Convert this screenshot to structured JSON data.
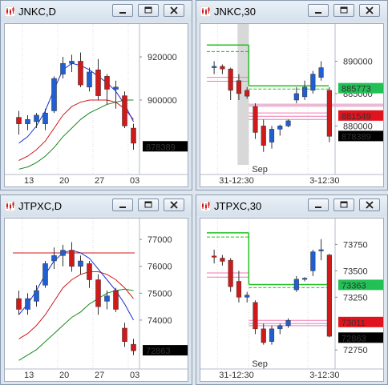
{
  "colors": {
    "bull": "#1f5fd1",
    "bear": "#d01a1a",
    "ma_short": "#1a2fd0",
    "ma_mid": "#d01a1a",
    "ma_long": "#1a8a1a",
    "level_green": "#22c022",
    "level_pink": "#f07ab4",
    "tag_green": "#22c055",
    "tag_red": "#e0141e",
    "tag_black": "#000000"
  },
  "icons": [
    "chart-app-icon",
    "minimize-icon",
    "restore-icon",
    "close-icon"
  ],
  "windows": [
    {
      "title": "JNKC,D",
      "chart_data": {
        "type": "candlestick",
        "timeframe": "daily",
        "y_ticks": [
          880000,
          900000,
          920000
        ],
        "y_tick_labels": [
          "920000",
          "900000"
        ],
        "ylim": [
          867000,
          933000
        ],
        "x_tick_labels": [
          "13",
          "20",
          "27",
          "03"
        ],
        "x_tick_index": [
          1,
          5,
          9,
          13
        ],
        "candles": [
          {
            "o": 892000,
            "h": 895000,
            "l": 884000,
            "c": 889000
          },
          {
            "o": 889000,
            "h": 893000,
            "l": 886000,
            "c": 891000
          },
          {
            "o": 890000,
            "h": 894000,
            "l": 887000,
            "c": 893000
          },
          {
            "o": 889000,
            "h": 896000,
            "l": 886000,
            "c": 894000
          },
          {
            "o": 895000,
            "h": 911000,
            "l": 894000,
            "c": 910000
          },
          {
            "o": 912000,
            "h": 920000,
            "l": 910000,
            "c": 917000
          },
          {
            "o": 917000,
            "h": 921000,
            "l": 913000,
            "c": 918000
          },
          {
            "o": 918000,
            "h": 922000,
            "l": 906000,
            "c": 907000
          },
          {
            "o": 906000,
            "h": 915000,
            "l": 904000,
            "c": 913000
          },
          {
            "o": 914000,
            "h": 919000,
            "l": 900000,
            "c": 902000
          },
          {
            "o": 911000,
            "h": 912000,
            "l": 898000,
            "c": 905000
          },
          {
            "o": 905000,
            "h": 909000,
            "l": 896000,
            "c": 906000
          },
          {
            "o": 902000,
            "h": 904000,
            "l": 887000,
            "c": 888000
          },
          {
            "o": 887000,
            "h": 889000,
            "l": 877000,
            "c": 880000
          }
        ],
        "ma_short": [
          880000,
          883000,
          888000,
          895000,
          905000,
          914000,
          917000,
          916000,
          914000,
          911000,
          908000,
          904000,
          898000,
          890000
        ],
        "ma_mid": [
          872000,
          874000,
          877000,
          881000,
          887000,
          893000,
          897000,
          899000,
          900000,
          900000,
          900000,
          899000,
          896000,
          891000
        ],
        "ma_long": [
          868000,
          869000,
          871000,
          874000,
          878000,
          883000,
          887000,
          891000,
          894000,
          896000,
          898000,
          899000,
          900000,
          900000
        ],
        "price_tags": [
          {
            "value": 878389,
            "label": "878389",
            "color": "tag_black"
          }
        ]
      }
    },
    {
      "title": "JNKC,30",
      "chart_data": {
        "type": "candlestick",
        "timeframe": "30min",
        "y_ticks": [
          880000,
          885000,
          890000
        ],
        "y_tick_labels": [
          "890000",
          "885000",
          "880000"
        ],
        "ylim": [
          873000,
          895000
        ],
        "x_tick_labels": [
          "31-12:30",
          "3-12:30"
        ],
        "x_tick_index": [
          1,
          12
        ],
        "separator_label": "Sep",
        "candles": [
          {
            "o": 889000,
            "h": 890000,
            "l": 888000,
            "c": 889200
          },
          {
            "o": 889200,
            "h": 889500,
            "l": 888000,
            "c": 888800
          },
          {
            "o": 888800,
            "h": 889000,
            "l": 884000,
            "c": 885500
          },
          {
            "o": 887000,
            "h": 888000,
            "l": 884000,
            "c": 885000
          },
          {
            "o": 885500,
            "h": 886000,
            "l": 884200,
            "c": 884600
          },
          {
            "o": 883000,
            "h": 883500,
            "l": 878000,
            "c": 879000
          },
          {
            "o": 880000,
            "h": 881000,
            "l": 876000,
            "c": 877000
          },
          {
            "o": 877500,
            "h": 880000,
            "l": 876500,
            "c": 879500
          },
          {
            "o": 879500,
            "h": 880200,
            "l": 878500,
            "c": 880000
          },
          {
            "o": 880000,
            "h": 881000,
            "l": 879800,
            "c": 880800
          },
          {
            "o": 884000,
            "h": 886000,
            "l": 883500,
            "c": 885000
          },
          {
            "o": 884500,
            "h": 887000,
            "l": 884000,
            "c": 886000
          },
          {
            "o": 885500,
            "h": 888500,
            "l": 885000,
            "c": 888000
          },
          {
            "o": 887500,
            "h": 890000,
            "l": 887000,
            "c": 889000
          },
          {
            "o": 885500,
            "h": 886000,
            "l": 877500,
            "c": 878400
          }
        ],
        "green_levels_left": [
          892500,
          891500
        ],
        "green_levels_right": [
          886200,
          885700
        ],
        "pink_levels_left": [
          887500,
          886900
        ],
        "pink_levels_right": [
          882000,
          881500,
          881000
        ],
        "highlight_level": 883200,
        "price_tags": [
          {
            "value": 885773,
            "label": "885773",
            "color": "tag_green"
          },
          {
            "value": 881549,
            "label": "881549",
            "color": "tag_red"
          },
          {
            "value": 878389,
            "label": "878389",
            "color": "tag_black"
          }
        ]
      }
    },
    {
      "title": "JTPXC,D",
      "chart_data": {
        "type": "candlestick",
        "timeframe": "daily",
        "y_ticks": [
          74000,
          75000,
          76000,
          77000
        ],
        "y_tick_labels": [
          "77000",
          "76000",
          "75000",
          "74000"
        ],
        "ylim": [
          72300,
          77600
        ],
        "x_tick_labels": [
          "13",
          "20",
          "27",
          "03"
        ],
        "x_tick_index": [
          1,
          5,
          9,
          13
        ],
        "candles": [
          {
            "o": 74800,
            "h": 75100,
            "l": 74200,
            "c": 74400
          },
          {
            "o": 74400,
            "h": 75000,
            "l": 74200,
            "c": 74800
          },
          {
            "o": 74700,
            "h": 75300,
            "l": 74500,
            "c": 75100
          },
          {
            "o": 75300,
            "h": 76200,
            "l": 75200,
            "c": 76100
          },
          {
            "o": 76200,
            "h": 76700,
            "l": 75900,
            "c": 76400
          },
          {
            "o": 76400,
            "h": 76800,
            "l": 76000,
            "c": 76600
          },
          {
            "o": 76600,
            "h": 76900,
            "l": 75800,
            "c": 76000
          },
          {
            "o": 76000,
            "h": 76400,
            "l": 75700,
            "c": 76200
          },
          {
            "o": 76100,
            "h": 76200,
            "l": 75200,
            "c": 75500
          },
          {
            "o": 75500,
            "h": 75700,
            "l": 74200,
            "c": 74500
          },
          {
            "o": 74700,
            "h": 75100,
            "l": 74400,
            "c": 74900
          },
          {
            "o": 75100,
            "h": 75200,
            "l": 74300,
            "c": 74400
          },
          {
            "o": 73700,
            "h": 73900,
            "l": 73000,
            "c": 73200
          },
          {
            "o": 73100,
            "h": 73300,
            "l": 72700,
            "c": 72860
          }
        ],
        "ma_short": [
          74200,
          74600,
          75100,
          75700,
          76200,
          76500,
          76600,
          76500,
          76300,
          75900,
          75500,
          75100,
          74600,
          74000
        ],
        "ma_mid": [
          73300,
          73500,
          73800,
          74200,
          74700,
          75200,
          75500,
          75700,
          75800,
          75800,
          75700,
          75500,
          75200,
          74800
        ],
        "ma_long": [
          72500,
          72700,
          72900,
          73200,
          73500,
          73800,
          74100,
          74300,
          74600,
          74800,
          75000,
          75100,
          75150,
          75100
        ],
        "horizontal_line": 76500,
        "price_tags": [
          {
            "value": 72863,
            "label": "72863",
            "color": "tag_black"
          }
        ]
      }
    },
    {
      "title": "JTPXC,30",
      "chart_data": {
        "type": "candlestick",
        "timeframe": "30min",
        "y_ticks": [
          72750,
          73000,
          73250,
          73500,
          73750
        ],
        "y_tick_labels": [
          "73750",
          "73500",
          "73250",
          "72750"
        ],
        "ylim": [
          72600,
          73950
        ],
        "x_tick_labels": [
          "31-12:30",
          "3-12:30"
        ],
        "x_tick_index": [
          1,
          12
        ],
        "separator_label": "Sep",
        "candles": [
          {
            "o": 73640,
            "h": 73700,
            "l": 73570,
            "c": 73630
          },
          {
            "o": 73620,
            "h": 73650,
            "l": 73550,
            "c": 73590
          },
          {
            "o": 73600,
            "h": 73620,
            "l": 73300,
            "c": 73350
          },
          {
            "o": 73400,
            "h": 73500,
            "l": 73200,
            "c": 73250
          },
          {
            "o": 73250,
            "h": 73300,
            "l": 73200,
            "c": 73270
          },
          {
            "o": 73200,
            "h": 73220,
            "l": 72900,
            "c": 72950
          },
          {
            "o": 72950,
            "h": 73000,
            "l": 72800,
            "c": 72820
          },
          {
            "o": 72830,
            "h": 72980,
            "l": 72800,
            "c": 72950
          },
          {
            "o": 72950,
            "h": 73000,
            "l": 72900,
            "c": 72980
          },
          {
            "o": 72980,
            "h": 73050,
            "l": 72960,
            "c": 73030
          },
          {
            "o": 73320,
            "h": 73450,
            "l": 73300,
            "c": 73420
          },
          {
            "o": 73420,
            "h": 73440,
            "l": 73400,
            "c": 73430
          },
          {
            "o": 73500,
            "h": 73700,
            "l": 73450,
            "c": 73680
          },
          {
            "o": 73690,
            "h": 73800,
            "l": 73600,
            "c": 73700
          },
          {
            "o": 73650,
            "h": 73660,
            "l": 72870,
            "c": 72880
          }
        ],
        "green_levels_left": [
          73860,
          73820
        ],
        "green_levels_right": [
          73370,
          73340
        ],
        "pink_levels_left": [
          73480,
          73440
        ],
        "pink_levels_right": [
          73030,
          73000,
          72980
        ],
        "price_tags": [
          {
            "value": 73363,
            "label": "73363",
            "color": "tag_green"
          },
          {
            "value": 73011,
            "label": "73011",
            "color": "tag_red"
          },
          {
            "value": 72863,
            "label": "72863",
            "color": "tag_black"
          }
        ]
      }
    }
  ]
}
